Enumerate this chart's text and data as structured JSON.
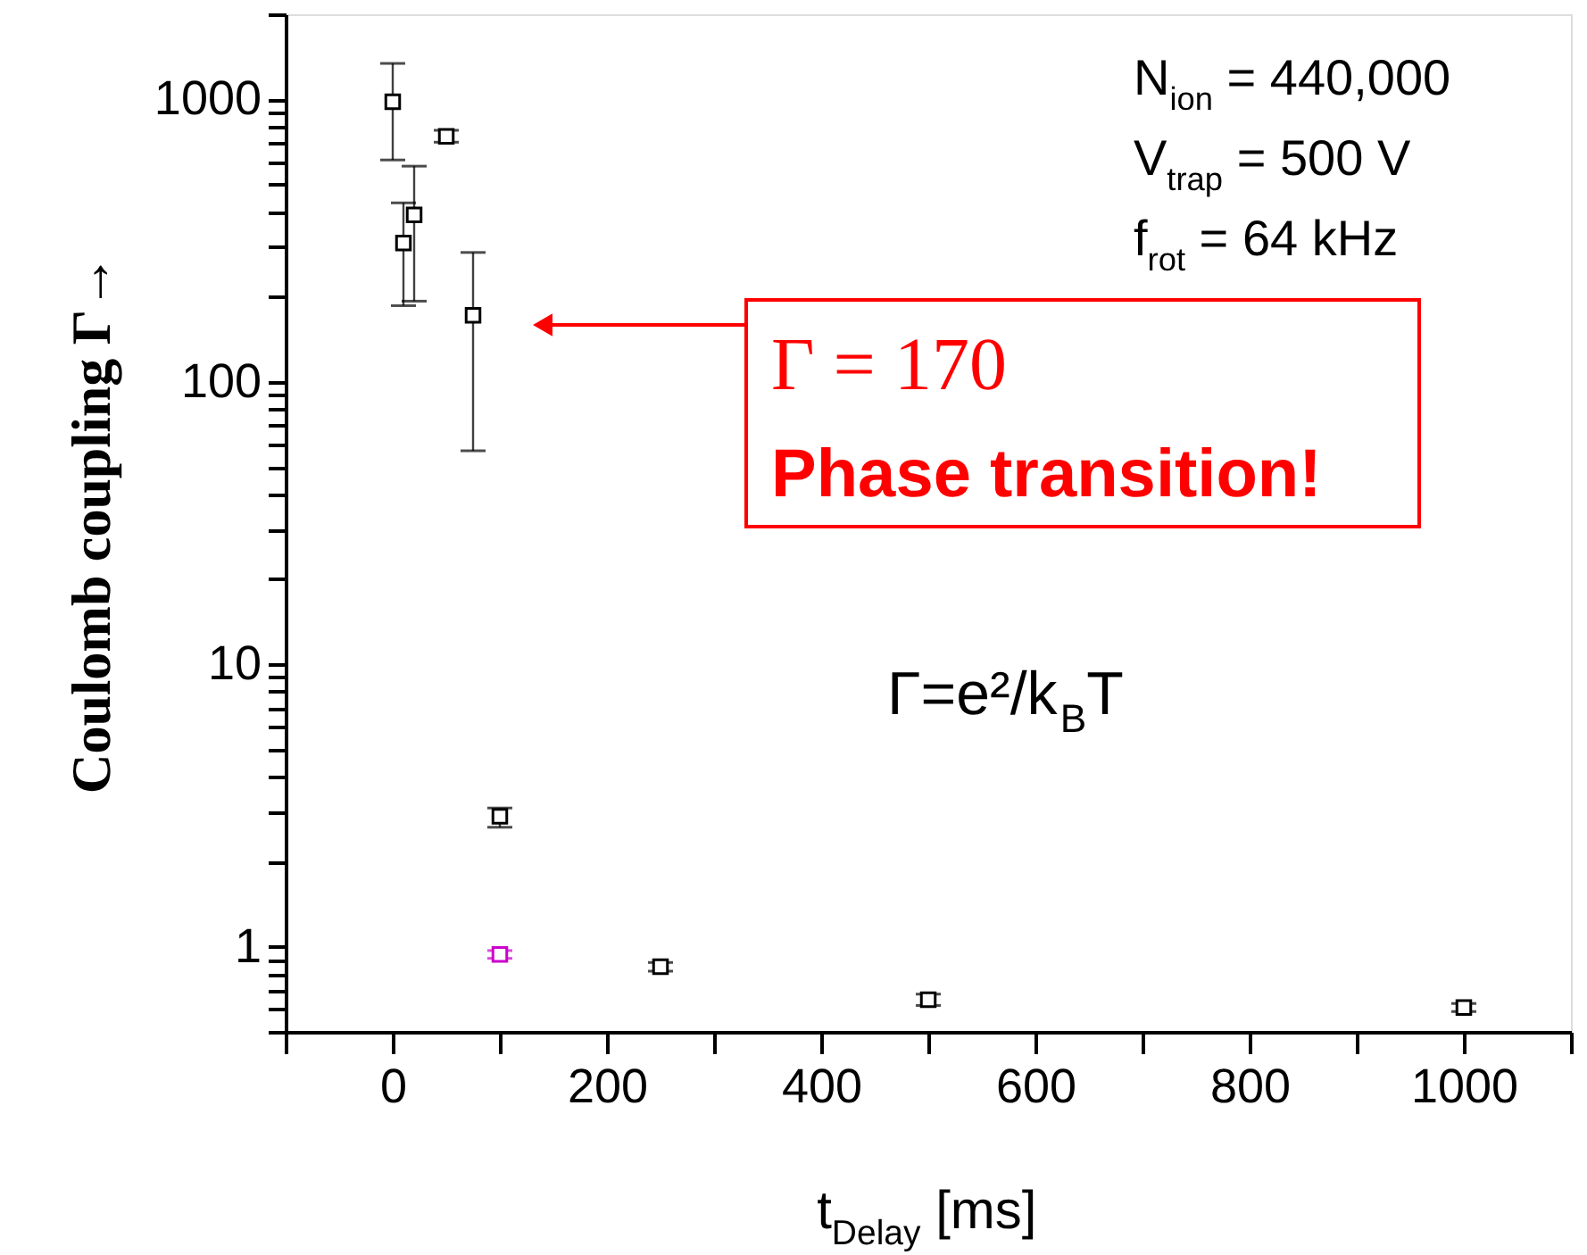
{
  "chart_data": {
    "type": "scatter",
    "xlabel": "t$_{Delay}$ [ms]",
    "ylabel": "Coulomb coupling  Γ→",
    "xlim": [
      -100,
      1100
    ],
    "ylim": [
      0.5,
      2000
    ],
    "log": "y",
    "grid": false,
    "marker": "square",
    "xticks": [
      {
        "value": -100,
        "label": null
      },
      0,
      {
        "value": 100,
        "label": null
      },
      200,
      {
        "value": 300,
        "label": null
      },
      400,
      {
        "value": 500,
        "label": null
      },
      600,
      {
        "value": 700,
        "label": null
      },
      800,
      {
        "value": 900,
        "label": null
      },
      1000,
      {
        "value": 1100,
        "label": null
      }
    ],
    "yticks": [
      {
        "value": 0.5,
        "label": null
      },
      {
        "value": 0.6,
        "label": null
      },
      {
        "value": 0.7,
        "label": null
      },
      {
        "value": 0.8,
        "label": null
      },
      {
        "value": 0.9,
        "label": null
      },
      1,
      {
        "value": 2,
        "label": null
      },
      {
        "value": 3,
        "label": null
      },
      {
        "value": 4,
        "label": null
      },
      {
        "value": 5,
        "label": null
      },
      {
        "value": 6,
        "label": null
      },
      {
        "value": 7,
        "label": null
      },
      {
        "value": 8,
        "label": null
      },
      {
        "value": 9,
        "label": null
      },
      10,
      {
        "value": 20,
        "label": null
      },
      {
        "value": 30,
        "label": null
      },
      {
        "value": 40,
        "label": null
      },
      {
        "value": 50,
        "label": null
      },
      {
        "value": 60,
        "label": null
      },
      {
        "value": 70,
        "label": null
      },
      {
        "value": 80,
        "label": null
      },
      {
        "value": 90,
        "label": null
      },
      100,
      {
        "value": 200,
        "label": null
      },
      {
        "value": 300,
        "label": null
      },
      {
        "value": 400,
        "label": null
      },
      {
        "value": 500,
        "label": null
      },
      {
        "value": 600,
        "label": null
      },
      {
        "value": 700,
        "label": null
      },
      {
        "value": 800,
        "label": null
      },
      {
        "value": 900,
        "label": null
      },
      1000,
      {
        "value": 2000,
        "label": null
      }
    ],
    "series": [
      {
        "color": "#000000",
        "x": [
          0,
          10,
          20,
          50,
          75,
          100,
          250,
          500,
          1000
        ],
        "values": [
          980,
          310,
          390,
          740,
          172,
          2.9,
          0.85,
          0.65,
          0.61
        ],
        "errors": [
          [
            610,
            1340
          ],
          [
            186,
            430
          ],
          [
            193,
            580
          ],
          [
            705,
            777
          ],
          [
            57,
            287
          ],
          [
            2.65,
            3.1
          ],
          0.03,
          0.03,
          0.02
        ]
      },
      {
        "color": "#cc00cc",
        "x": [
          100
        ],
        "values": [
          0.94
        ],
        "errors": [
          0.03
        ]
      }
    ],
    "annotations": [
      "N$_{ion}$ = 440,000",
      "V$_{trap}$ = 500 V",
      "f$_{rot}$ = 64 kHz",
      "Γ=e²/k$_{B}$T",
      "Γ = 170",
      "Phase transition!"
    ]
  }
}
